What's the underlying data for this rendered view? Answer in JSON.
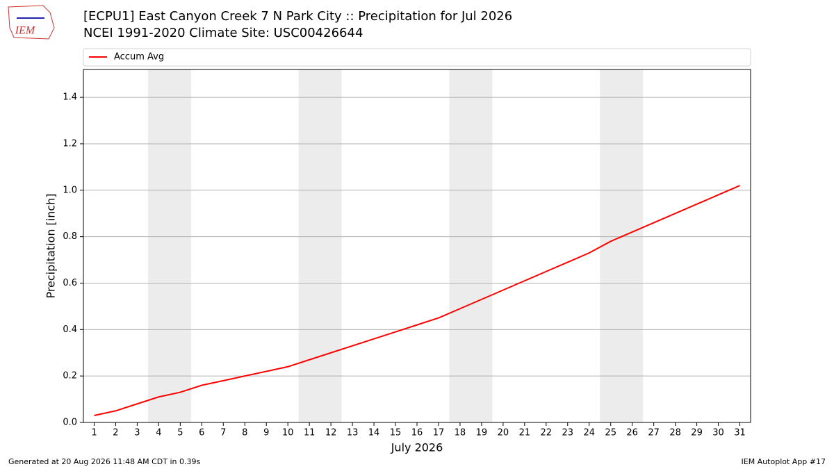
{
  "logo": "IEM",
  "footer": {
    "left": "Generated at 20 Aug 2026 11:48 AM CDT in 0.39s",
    "right": "IEM Autoplot App #17"
  },
  "chart_data": {
    "type": "line",
    "title": "[ECPU1] East Canyon Creek 7 N Park City :: Precipitation for Jul 2026",
    "subtitle": "NCEI 1991-2020 Climate Site: USC00426644",
    "xlabel": "July 2026",
    "ylabel": "Precipitation [inch]",
    "x": [
      1,
      2,
      3,
      4,
      5,
      6,
      7,
      8,
      9,
      10,
      11,
      12,
      13,
      14,
      15,
      16,
      17,
      18,
      19,
      20,
      21,
      22,
      23,
      24,
      25,
      26,
      27,
      28,
      29,
      30,
      31
    ],
    "series": [
      {
        "name": "Accum Avg",
        "color": "#ff0000",
        "values": [
          0.03,
          0.05,
          0.08,
          0.11,
          0.13,
          0.16,
          0.18,
          0.2,
          0.22,
          0.24,
          0.27,
          0.3,
          0.33,
          0.36,
          0.39,
          0.42,
          0.45,
          0.49,
          0.53,
          0.57,
          0.61,
          0.65,
          0.69,
          0.73,
          0.78,
          0.82,
          0.86,
          0.9,
          0.94,
          0.98,
          1.02
        ]
      }
    ],
    "shaded_spans": [
      [
        3.5,
        5.5
      ],
      [
        10.5,
        12.5
      ],
      [
        17.5,
        19.5
      ],
      [
        24.5,
        26.5
      ]
    ],
    "xlim": [
      0.5,
      31.5
    ],
    "ylim": [
      0,
      1.52
    ],
    "xticks": [
      1,
      2,
      3,
      4,
      5,
      6,
      7,
      8,
      9,
      10,
      11,
      12,
      13,
      14,
      15,
      16,
      17,
      18,
      19,
      20,
      21,
      22,
      23,
      24,
      25,
      26,
      27,
      28,
      29,
      30,
      31
    ],
    "yticks": [
      {
        "value": 0,
        "label": "0.0"
      },
      0.2,
      0.4,
      0.6,
      0.8,
      {
        "value": 1,
        "label": "1.0"
      },
      1.2,
      1.4
    ],
    "grid": "y",
    "legend": "top"
  }
}
